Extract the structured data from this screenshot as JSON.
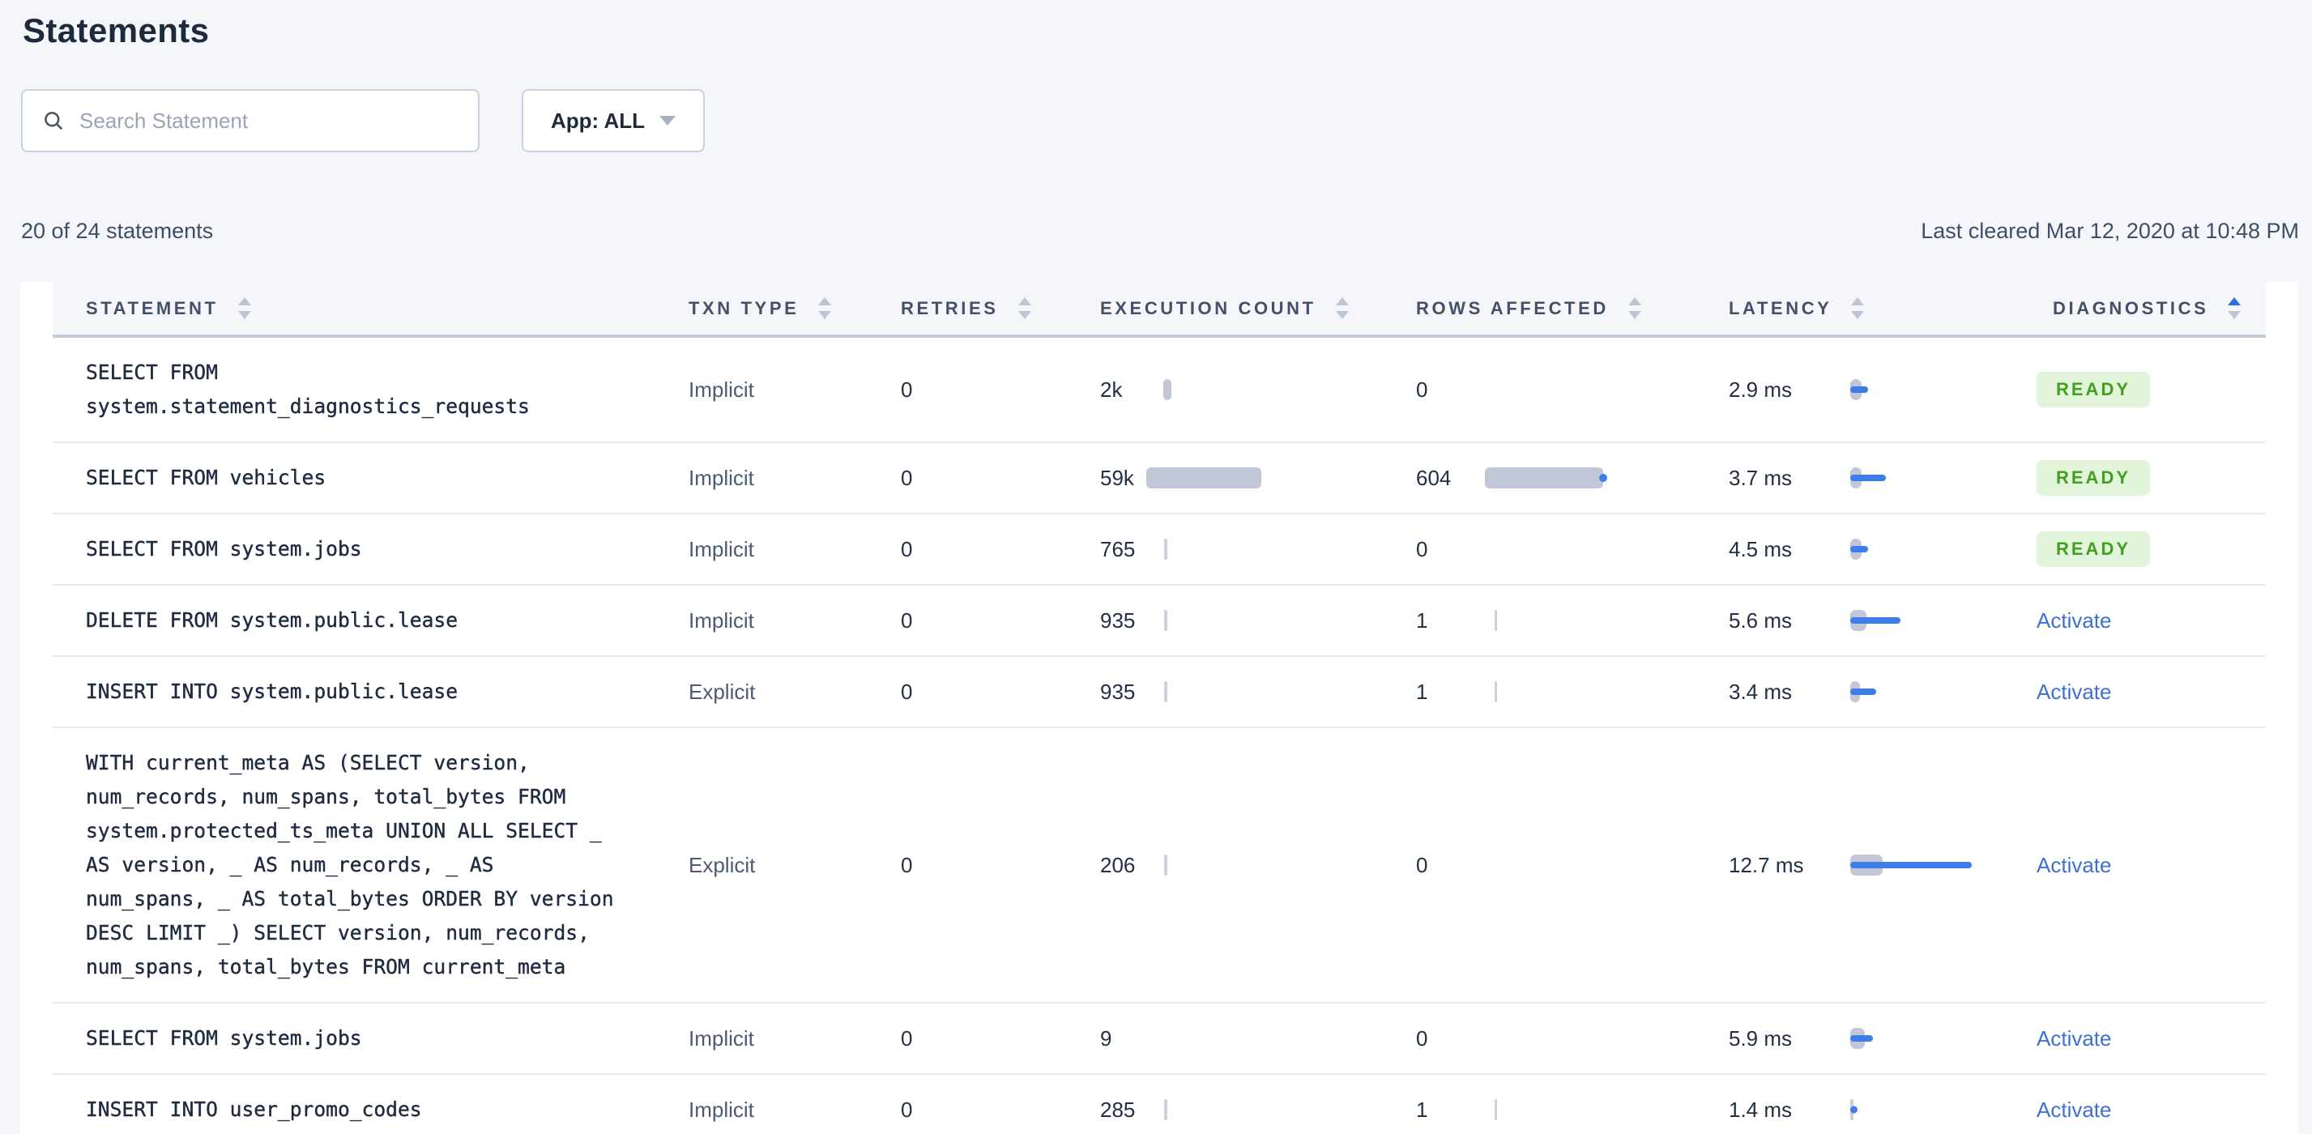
{
  "title": "Statements",
  "search": {
    "placeholder": "Search Statement"
  },
  "app_filter": {
    "label": "App: ALL"
  },
  "summary": {
    "count_text": "20 of 24 statements",
    "last_cleared": "Last cleared Mar 12, 2020 at 10:48 PM"
  },
  "colors": {
    "accent_blue": "#3E7DE8",
    "link_blue": "#3E70D3",
    "badge_green_text": "#42A020",
    "badge_green_bg": "#E2F4DA",
    "bar_gray": "#C2C7D7"
  },
  "table": {
    "columns": [
      {
        "label": "STATEMENT",
        "sort": "none"
      },
      {
        "label": "TXN TYPE",
        "sort": "none"
      },
      {
        "label": "RETRIES",
        "sort": "none"
      },
      {
        "label": "EXECUTION COUNT",
        "sort": "none"
      },
      {
        "label": "ROWS AFFECTED",
        "sort": "none"
      },
      {
        "label": "LATENCY",
        "sort": "none"
      },
      {
        "label": "DIAGNOSTICS",
        "sort": "asc"
      }
    ],
    "rows": [
      {
        "statement": "SELECT FROM system.statement_diagnostics_requests",
        "txn_type": "Implicit",
        "retries": "0",
        "execution_count": "2k",
        "exec_bar": {
          "x": 39,
          "w": 5,
          "style": "pill"
        },
        "rows_affected": "0",
        "rows_bar": {
          "w": 0
        },
        "latency": "2.9 ms",
        "latency_bar": {
          "gray_w": 7,
          "blue_w": 11,
          "gray_style": "bar"
        },
        "diagnostics": {
          "type": "badge",
          "label": "READY"
        }
      },
      {
        "statement": "SELECT FROM vehicles",
        "txn_type": "Implicit",
        "retries": "0",
        "execution_count": "59k",
        "exec_bar": {
          "x": 28.5,
          "w": 71,
          "style": "bar"
        },
        "rows_affected": "604",
        "rows_bar": {
          "x": 42.5,
          "w": 73,
          "style": "bar",
          "dot": true
        },
        "latency": "3.7 ms",
        "latency_bar": {
          "gray_w": 7,
          "blue_w": 22,
          "gray_style": "bar"
        },
        "diagnostics": {
          "type": "badge",
          "label": "READY"
        }
      },
      {
        "statement": "SELECT FROM system.jobs",
        "txn_type": "Implicit",
        "retries": "0",
        "execution_count": "765",
        "exec_bar": {
          "x": 39.5,
          "w": 1.8,
          "style": "thin"
        },
        "rows_affected": "0",
        "rows_bar": {
          "w": 0
        },
        "latency": "4.5 ms",
        "latency_bar": {
          "gray_w": 7,
          "blue_w": 11,
          "gray_style": "bar"
        },
        "diagnostics": {
          "type": "badge",
          "label": "READY"
        }
      },
      {
        "statement": "DELETE FROM system.public.lease",
        "txn_type": "Implicit",
        "retries": "0",
        "execution_count": "935",
        "exec_bar": {
          "x": 39.5,
          "w": 1.8,
          "style": "thin"
        },
        "rows_affected": "1",
        "rows_bar": {
          "x": 48.25,
          "w": 1.8,
          "style": "thin"
        },
        "latency": "5.6 ms",
        "latency_bar": {
          "gray_w": 10,
          "blue_w": 31,
          "gray_style": "bar"
        },
        "diagnostics": {
          "type": "link",
          "label": "Activate"
        }
      },
      {
        "statement": "INSERT INTO system.public.lease",
        "txn_type": "Explicit",
        "retries": "0",
        "execution_count": "935",
        "exec_bar": {
          "x": 39.5,
          "w": 1.8,
          "style": "thin"
        },
        "rows_affected": "1",
        "rows_bar": {
          "x": 48.25,
          "w": 1.8,
          "style": "thin"
        },
        "latency": "3.4 ms",
        "latency_bar": {
          "gray_w": 6,
          "blue_w": 16,
          "gray_style": "bar"
        },
        "diagnostics": {
          "type": "link",
          "label": "Activate"
        }
      },
      {
        "statement": "WITH current_meta AS (SELECT version, num_records, num_spans, total_bytes FROM system.protected_ts_meta UNION ALL SELECT _ AS version, _ AS num_records, _ AS num_spans, _ AS total_bytes ORDER BY version DESC LIMIT _) SELECT version, num_records, num_spans, total_bytes FROM current_meta",
        "txn_type": "Explicit",
        "retries": "0",
        "execution_count": "206",
        "exec_bar": {
          "x": 39.5,
          "w": 1.8,
          "style": "thin"
        },
        "rows_affected": "0",
        "rows_bar": {
          "w": 0
        },
        "latency": "12.7 ms",
        "latency_bar": {
          "gray_w": 20,
          "blue_w": 75,
          "gray_style": "bar"
        },
        "diagnostics": {
          "type": "link",
          "label": "Activate"
        }
      },
      {
        "statement": "SELECT FROM system.jobs",
        "txn_type": "Implicit",
        "retries": "0",
        "execution_count": "9",
        "exec_bar": {
          "w": 0
        },
        "rows_affected": "0",
        "rows_bar": {
          "w": 0
        },
        "latency": "5.9 ms",
        "latency_bar": {
          "gray_w": 9,
          "blue_w": 14,
          "gray_style": "bar"
        },
        "diagnostics": {
          "type": "link",
          "label": "Activate"
        }
      },
      {
        "statement": "INSERT INTO user_promo_codes",
        "txn_type": "Implicit",
        "retries": "0",
        "execution_count": "285",
        "exec_bar": {
          "x": 39.5,
          "w": 1.8,
          "style": "thin"
        },
        "rows_affected": "1",
        "rows_bar": {
          "x": 48.25,
          "w": 1.8,
          "style": "thin"
        },
        "latency": "1.4 ms",
        "latency_bar": {
          "gray_w": 1.8,
          "blue_w": 4.5,
          "gray_style": "thin",
          "blue_style": "stub"
        },
        "diagnostics": {
          "type": "link",
          "label": "Activate"
        }
      }
    ]
  }
}
